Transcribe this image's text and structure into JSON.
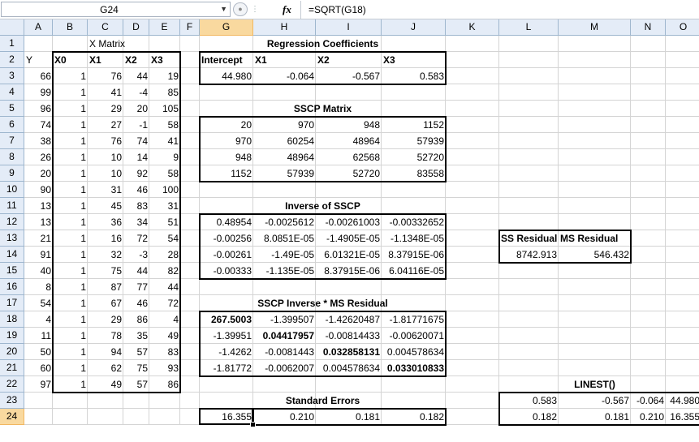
{
  "formula_bar": {
    "name_box": "G24",
    "fx_label": "fx",
    "formula": "=SQRT(G18)"
  },
  "columns": [
    "A",
    "B",
    "C",
    "D",
    "E",
    "F",
    "G",
    "H",
    "I",
    "J",
    "K",
    "L",
    "M",
    "N",
    "O"
  ],
  "rows": [
    "1",
    "2",
    "3",
    "4",
    "5",
    "6",
    "7",
    "8",
    "9",
    "10",
    "11",
    "12",
    "13",
    "14",
    "15",
    "16",
    "17",
    "18",
    "19",
    "20",
    "21",
    "22",
    "23",
    "24"
  ],
  "cells": [
    {
      "ref": "C1",
      "v": "X Matrix",
      "a": "l"
    },
    {
      "ref": "H1",
      "v": "Regression Coefficients",
      "a": "c",
      "b": true,
      "span": "H"
    },
    {
      "ref": "A2",
      "v": "Y",
      "a": "l"
    },
    {
      "ref": "B2",
      "v": "X0",
      "a": "l",
      "b": true
    },
    {
      "ref": "C2",
      "v": "X1",
      "a": "l",
      "b": true
    },
    {
      "ref": "D2",
      "v": "X2",
      "a": "l",
      "b": true
    },
    {
      "ref": "E2",
      "v": "X3",
      "a": "l",
      "b": true
    },
    {
      "ref": "G2",
      "v": "Intercept",
      "a": "l",
      "b": true
    },
    {
      "ref": "H2",
      "v": "X1",
      "a": "l",
      "b": true
    },
    {
      "ref": "I2",
      "v": "X2",
      "a": "l",
      "b": true
    },
    {
      "ref": "J2",
      "v": "X3",
      "a": "l",
      "b": true
    },
    {
      "ref": "G3",
      "v": "44.980"
    },
    {
      "ref": "H3",
      "v": "-0.064"
    },
    {
      "ref": "I3",
      "v": "-0.567"
    },
    {
      "ref": "J3",
      "v": "0.583"
    },
    {
      "ref": "H5",
      "v": "SSCP Matrix",
      "a": "c",
      "b": true,
      "span": "H"
    },
    {
      "ref": "G6",
      "v": "20"
    },
    {
      "ref": "H6",
      "v": "970"
    },
    {
      "ref": "I6",
      "v": "948"
    },
    {
      "ref": "J6",
      "v": "1152"
    },
    {
      "ref": "G7",
      "v": "970"
    },
    {
      "ref": "H7",
      "v": "60254"
    },
    {
      "ref": "I7",
      "v": "48964"
    },
    {
      "ref": "J7",
      "v": "57939"
    },
    {
      "ref": "G8",
      "v": "948"
    },
    {
      "ref": "H8",
      "v": "48964"
    },
    {
      "ref": "I8",
      "v": "62568"
    },
    {
      "ref": "J8",
      "v": "52720"
    },
    {
      "ref": "G9",
      "v": "1152"
    },
    {
      "ref": "H9",
      "v": "57939"
    },
    {
      "ref": "I9",
      "v": "52720"
    },
    {
      "ref": "J9",
      "v": "83558"
    },
    {
      "ref": "H11",
      "v": "Inverse of SSCP",
      "a": "c",
      "b": true,
      "span": "H"
    },
    {
      "ref": "G12",
      "v": "0.48954"
    },
    {
      "ref": "H12",
      "v": "-0.0025612"
    },
    {
      "ref": "I12",
      "v": "-0.00261003"
    },
    {
      "ref": "J12",
      "v": "-0.00332652"
    },
    {
      "ref": "G13",
      "v": "-0.00256"
    },
    {
      "ref": "H13",
      "v": "8.0851E-05"
    },
    {
      "ref": "I13",
      "v": "-1.4905E-05"
    },
    {
      "ref": "J13",
      "v": "-1.1348E-05"
    },
    {
      "ref": "L13",
      "v": "SS Residual",
      "a": "l",
      "b": true
    },
    {
      "ref": "M13",
      "v": "MS Residual",
      "a": "l",
      "b": true
    },
    {
      "ref": "G14",
      "v": "-0.00261"
    },
    {
      "ref": "H14",
      "v": "-1.49E-05"
    },
    {
      "ref": "I14",
      "v": "6.01321E-05"
    },
    {
      "ref": "J14",
      "v": "8.37915E-06"
    },
    {
      "ref": "L14",
      "v": "8742.913"
    },
    {
      "ref": "M14",
      "v": "546.432"
    },
    {
      "ref": "G15",
      "v": "-0.00333"
    },
    {
      "ref": "H15",
      "v": "-1.135E-05"
    },
    {
      "ref": "I15",
      "v": "8.37915E-06"
    },
    {
      "ref": "J15",
      "v": "6.04116E-05"
    },
    {
      "ref": "H17",
      "v": "SSCP Inverse * MS Residual",
      "a": "c",
      "b": true,
      "span": "H"
    },
    {
      "ref": "G18",
      "v": "267.5003",
      "b": true
    },
    {
      "ref": "H18",
      "v": "-1.399507"
    },
    {
      "ref": "I18",
      "v": "-1.42620487"
    },
    {
      "ref": "J18",
      "v": "-1.81771675"
    },
    {
      "ref": "G19",
      "v": "-1.39951"
    },
    {
      "ref": "H19",
      "v": "0.04417957",
      "b": true
    },
    {
      "ref": "I19",
      "v": "-0.00814433"
    },
    {
      "ref": "J19",
      "v": "-0.00620071"
    },
    {
      "ref": "G20",
      "v": "-1.4262"
    },
    {
      "ref": "H20",
      "v": "-0.0081443"
    },
    {
      "ref": "I20",
      "v": "0.032858131",
      "b": true
    },
    {
      "ref": "J20",
      "v": "0.004578634"
    },
    {
      "ref": "G21",
      "v": "-1.81772"
    },
    {
      "ref": "H21",
      "v": "-0.0062007"
    },
    {
      "ref": "I21",
      "v": "0.004578634"
    },
    {
      "ref": "J21",
      "v": "0.033010833",
      "b": true
    },
    {
      "ref": "M22",
      "v": "LINEST()",
      "a": "c",
      "b": true
    },
    {
      "ref": "H23",
      "v": "Standard Errors",
      "a": "c",
      "b": true,
      "span": "H"
    },
    {
      "ref": "L23",
      "v": "0.583"
    },
    {
      "ref": "M23",
      "v": "-0.567"
    },
    {
      "ref": "N23",
      "v": "-0.064"
    },
    {
      "ref": "O23",
      "v": "44.980"
    },
    {
      "ref": "G24",
      "v": "16.355"
    },
    {
      "ref": "H24",
      "v": "0.210"
    },
    {
      "ref": "I24",
      "v": "0.181"
    },
    {
      "ref": "J24",
      "v": "0.182"
    },
    {
      "ref": "L24",
      "v": "0.182"
    },
    {
      "ref": "M24",
      "v": "0.181"
    },
    {
      "ref": "N24",
      "v": "0.210"
    },
    {
      "ref": "O24",
      "v": "16.355"
    }
  ],
  "x_matrix": [
    [
      66,
      1,
      76,
      44,
      19
    ],
    [
      99,
      1,
      41,
      -4,
      85
    ],
    [
      96,
      1,
      29,
      20,
      105
    ],
    [
      74,
      1,
      27,
      -1,
      58
    ],
    [
      38,
      1,
      76,
      74,
      41
    ],
    [
      26,
      1,
      10,
      14,
      9
    ],
    [
      20,
      1,
      10,
      92,
      58
    ],
    [
      90,
      1,
      31,
      46,
      100
    ],
    [
      13,
      1,
      45,
      83,
      31
    ],
    [
      13,
      1,
      36,
      34,
      51
    ],
    [
      21,
      1,
      16,
      72,
      54
    ],
    [
      91,
      1,
      32,
      -3,
      28
    ],
    [
      40,
      1,
      75,
      44,
      82
    ],
    [
      8,
      1,
      87,
      77,
      44
    ],
    [
      54,
      1,
      67,
      46,
      72
    ],
    [
      4,
      1,
      29,
      86,
      4
    ],
    [
      11,
      1,
      78,
      35,
      49
    ],
    [
      50,
      1,
      94,
      57,
      83
    ],
    [
      60,
      1,
      62,
      75,
      93
    ],
    [
      97,
      1,
      49,
      57,
      86
    ]
  ],
  "active_cell": "G24"
}
